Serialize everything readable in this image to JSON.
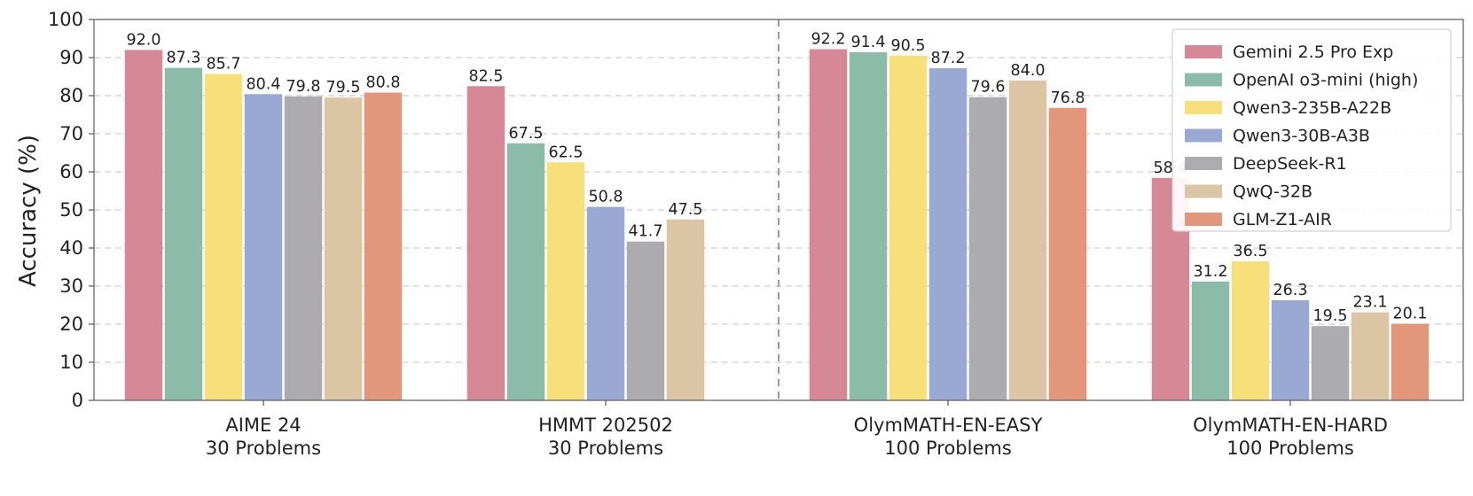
{
  "chart_data": {
    "type": "bar",
    "title": "",
    "xlabel": "",
    "ylabel": "Accuracy (%)",
    "ylim": [
      0,
      100
    ],
    "yticks": [
      0,
      10,
      20,
      30,
      40,
      50,
      60,
      70,
      80,
      90,
      100
    ],
    "grid": "y-dashed",
    "legend_position": "top-right",
    "divider_after_category": 1,
    "categories": [
      [
        "AIME 24",
        "30 Problems"
      ],
      [
        "HMMT 202502",
        "30 Problems"
      ],
      [
        "OlymMATH-EN-EASY",
        "100 Problems"
      ],
      [
        "OlymMATH-EN-HARD",
        "100 Problems"
      ]
    ],
    "series": [
      {
        "name": "Gemini 2.5 Pro Exp",
        "color": "#d68896",
        "values": [
          92.0,
          82.5,
          92.2,
          58.4
        ]
      },
      {
        "name": "OpenAI o3-mini (high)",
        "color": "#8abca9",
        "values": [
          87.3,
          67.5,
          91.4,
          31.2
        ]
      },
      {
        "name": "Qwen3-235B-A22B",
        "color": "#f7df7a",
        "values": [
          85.7,
          62.5,
          90.5,
          36.5
        ]
      },
      {
        "name": "Qwen3-30B-A3B",
        "color": "#99a9d4",
        "values": [
          80.4,
          50.8,
          87.2,
          26.3
        ]
      },
      {
        "name": "DeepSeek-R1",
        "color": "#acacb0",
        "values": [
          79.8,
          41.7,
          79.6,
          19.5
        ]
      },
      {
        "name": "QwQ-32B",
        "color": "#dcc5a5",
        "values": [
          79.5,
          47.5,
          84.0,
          23.1
        ]
      },
      {
        "name": "GLM-Z1-AIR",
        "color": "#e2967a",
        "values": [
          80.8,
          null,
          76.8,
          20.1
        ]
      }
    ]
  }
}
